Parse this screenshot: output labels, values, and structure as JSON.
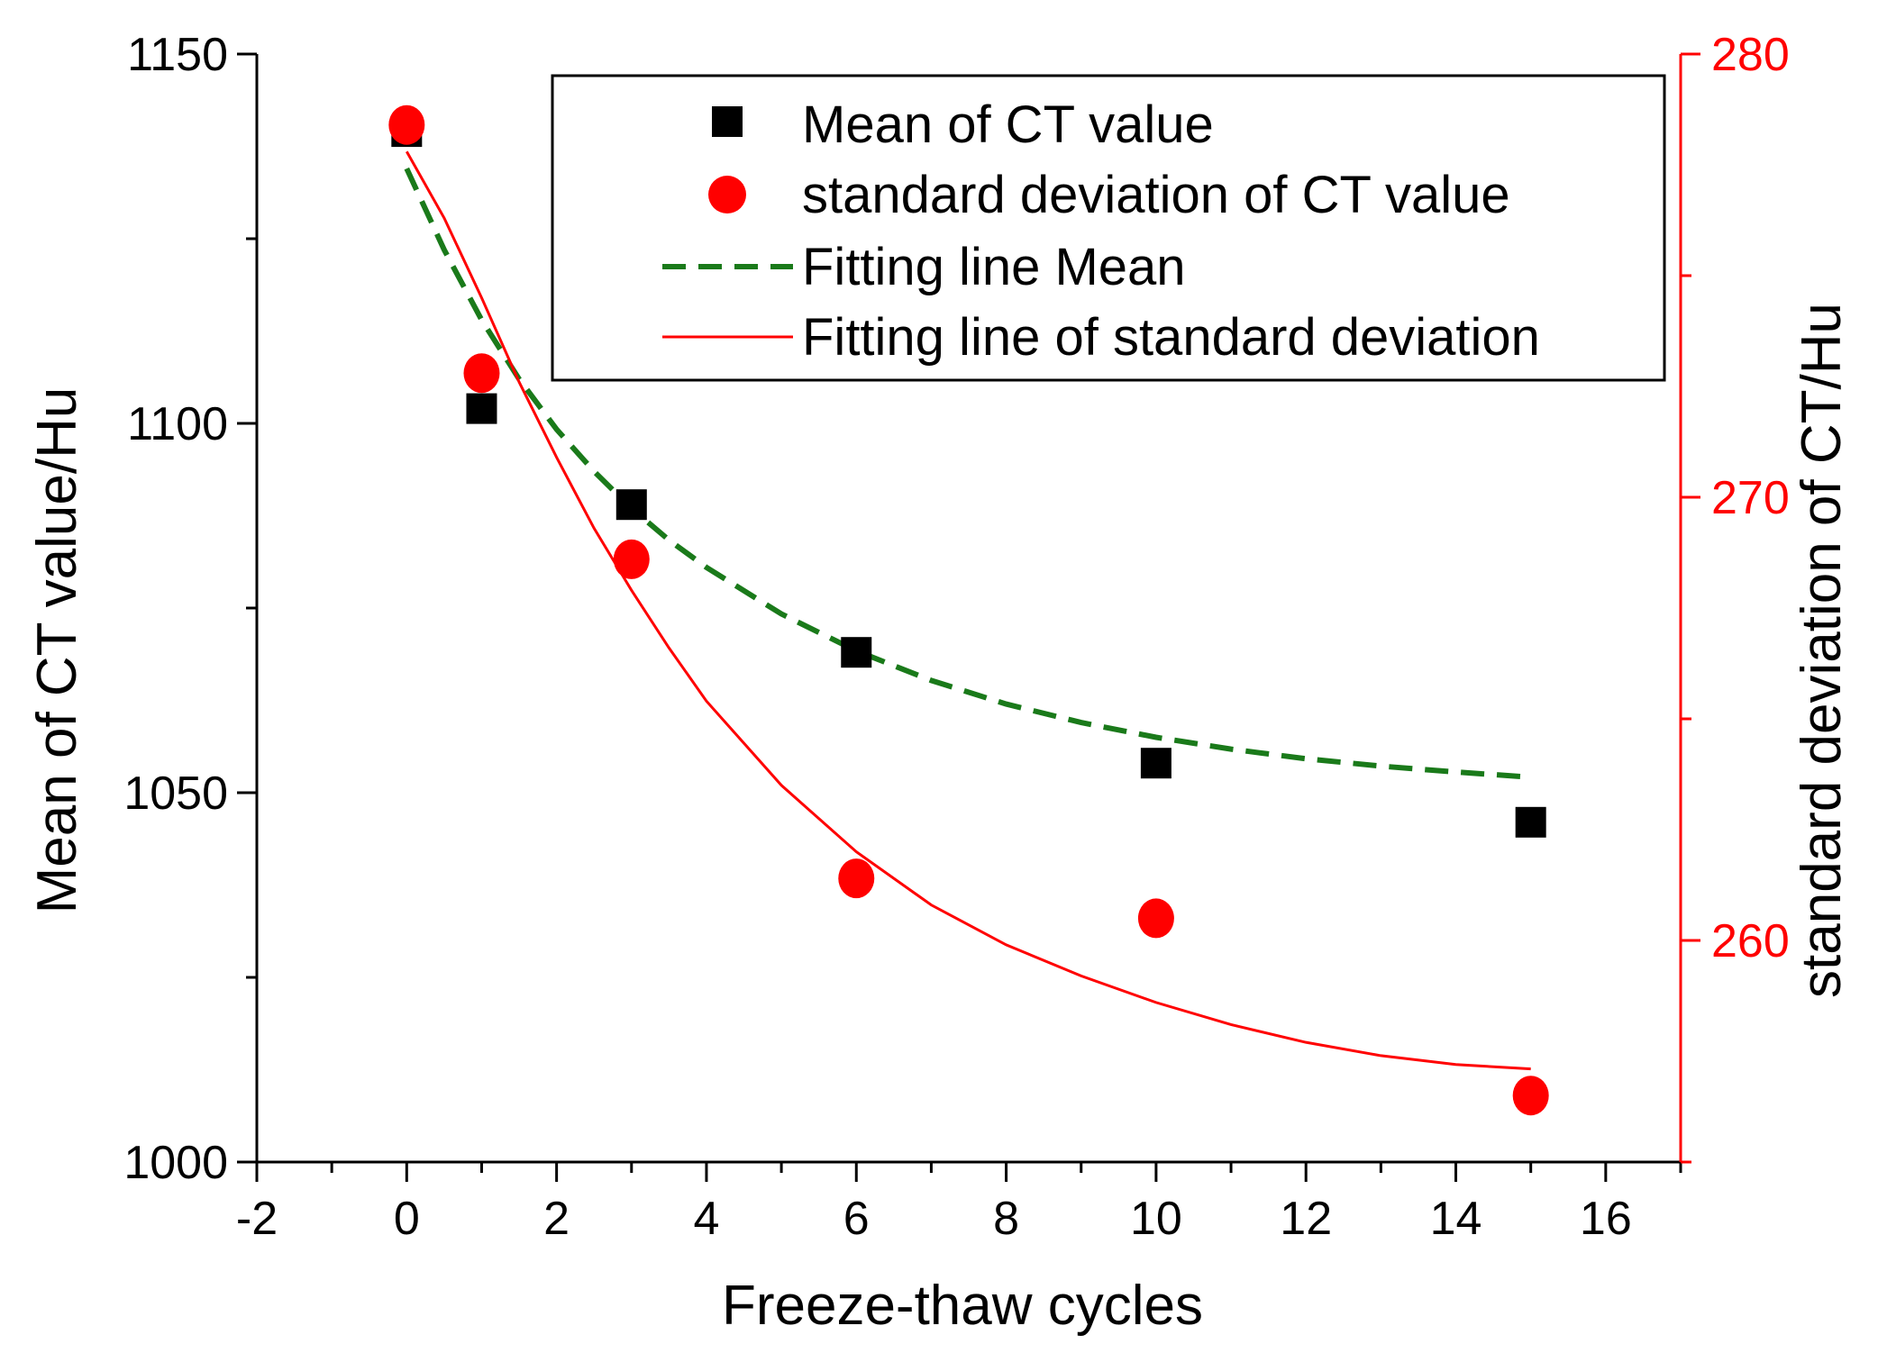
{
  "chart_data": {
    "type": "scatter",
    "xlabel": "Freeze-thaw cycles",
    "ylabel_left": "Mean of CT value/Hu",
    "ylabel_right": "standard deviation of CT/Hu",
    "xlim": [
      -2,
      17
    ],
    "xticks": [
      -2,
      0,
      2,
      4,
      6,
      8,
      10,
      12,
      14,
      16
    ],
    "ylim_left": [
      1000,
      1150
    ],
    "yticks_left": [
      1000,
      1050,
      1100,
      1150
    ],
    "ylim_right": [
      255,
      280
    ],
    "yticks_right": [
      260,
      270,
      280
    ],
    "colors": {
      "mean": "#000000",
      "std": "#ff0000",
      "mean_fit": "#1a7a1a",
      "std_fit": "#ff0000",
      "right_axis": "#ff0000"
    },
    "series": [
      {
        "name": "Mean of CT value",
        "marker": "square",
        "axis": "left",
        "x": [
          0,
          1,
          3,
          6,
          10,
          15
        ],
        "y": [
          1139.5,
          1102,
          1089,
          1069,
          1054,
          1046
        ]
      },
      {
        "name": "standard deviation of CT value",
        "marker": "circle",
        "axis": "right",
        "x": [
          0,
          1,
          3,
          6,
          10,
          15
        ],
        "y": [
          278.4,
          272.8,
          268.6,
          261.4,
          260.5,
          256.5
        ]
      },
      {
        "name": "Fitting line Mean",
        "style": "dashed",
        "axis": "left",
        "x": [
          0,
          0.5,
          1,
          1.5,
          2,
          2.5,
          3,
          3.5,
          4,
          5,
          6,
          7,
          8,
          9,
          10,
          11,
          12,
          13,
          14,
          15
        ],
        "y": [
          1134.5,
          1123.5,
          1114,
          1106,
          1099.2,
          1093.5,
          1088.5,
          1084.2,
          1080.5,
          1074.2,
          1069.2,
          1065.2,
          1062,
          1059.5,
          1057.5,
          1055.9,
          1054.6,
          1053.6,
          1052.8,
          1052.1
        ]
      },
      {
        "name": "Fitting line of standard deviation",
        "style": "solid",
        "axis": "right",
        "x": [
          0,
          0.5,
          1,
          1.5,
          2,
          2.5,
          3,
          3.5,
          4,
          5,
          6,
          7,
          8,
          9,
          10,
          11,
          12,
          13,
          14,
          15
        ],
        "y": [
          277.8,
          276.3,
          274.5,
          272.6,
          270.9,
          269.3,
          267.9,
          266.6,
          265.4,
          263.5,
          262.0,
          260.8,
          259.9,
          259.2,
          258.6,
          258.1,
          257.7,
          257.4,
          257.2,
          257.1
        ]
      }
    ]
  }
}
